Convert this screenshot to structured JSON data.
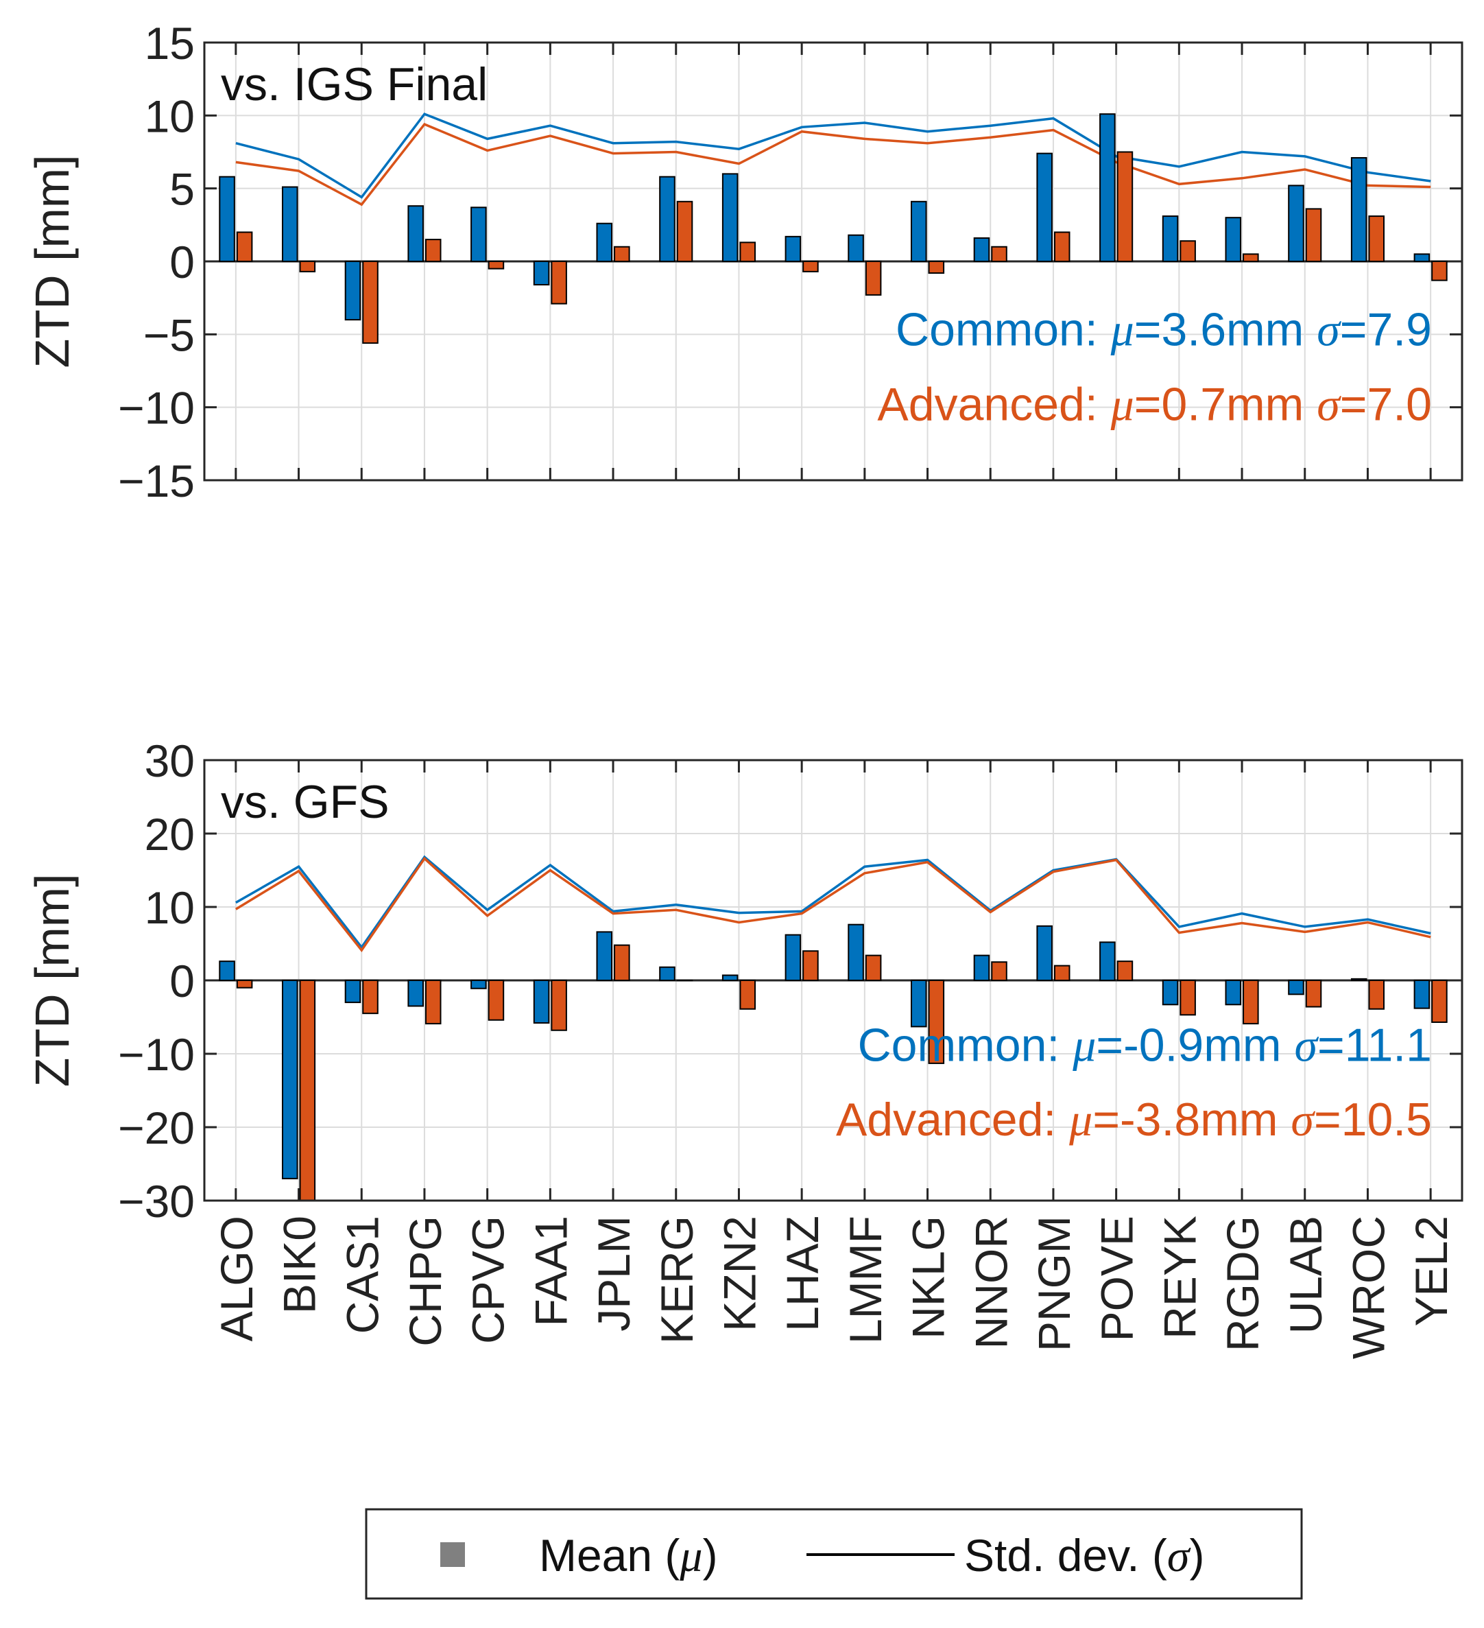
{
  "colors": {
    "common": "#0072BD",
    "advanced": "#D95319",
    "axis": "#262626",
    "grid": "#DCDCDC"
  },
  "chart_data": [
    {
      "type": "bar",
      "title": "vs. IGS Final",
      "ylabel": "ZTD [mm]",
      "ylim": [
        -15,
        15
      ],
      "yticks": [
        -15,
        -10,
        -5,
        0,
        5,
        10,
        15
      ],
      "yticklabels": [
        "−15",
        "−10",
        "−5",
        "0",
        "5",
        "10",
        "15"
      ],
      "grid": true,
      "categories": [
        "ALGO",
        "BIK0",
        "CAS1",
        "CHPG",
        "CPVG",
        "FAA1",
        "JPLM",
        "KERG",
        "KZN2",
        "LHAZ",
        "LMMF",
        "NKLG",
        "NNOR",
        "PNGM",
        "POVE",
        "REYK",
        "RGDG",
        "ULAB",
        "WROC",
        "YEL2"
      ],
      "series": [
        {
          "name": "Common",
          "kind": "mean",
          "values": [
            5.8,
            5.1,
            -4.0,
            3.8,
            3.7,
            -1.6,
            2.6,
            5.8,
            6.0,
            1.7,
            1.8,
            4.1,
            1.6,
            7.4,
            10.1,
            3.1,
            3.0,
            5.2,
            7.1,
            0.5
          ]
        },
        {
          "name": "Advanced",
          "kind": "mean",
          "values": [
            2.0,
            -0.7,
            -5.6,
            1.5,
            -0.5,
            -2.9,
            1.0,
            4.1,
            1.3,
            -0.7,
            -2.3,
            -0.8,
            1.0,
            2.0,
            7.5,
            1.4,
            0.5,
            3.6,
            3.1,
            -1.3
          ]
        },
        {
          "name": "Common",
          "kind": "std",
          "values": [
            8.1,
            7.0,
            4.4,
            10.1,
            8.4,
            9.3,
            8.1,
            8.2,
            7.7,
            9.2,
            9.5,
            8.9,
            9.3,
            9.8,
            7.2,
            6.5,
            7.5,
            7.2,
            6.1,
            5.5
          ]
        },
        {
          "name": "Advanced",
          "kind": "std",
          "values": [
            6.8,
            6.2,
            3.9,
            9.4,
            7.6,
            8.6,
            7.4,
            7.5,
            6.7,
            8.9,
            8.4,
            8.1,
            8.5,
            9.0,
            6.8,
            5.3,
            5.7,
            6.3,
            5.2,
            5.1
          ]
        }
      ],
      "annotations": {
        "common": {
          "label": "Common: ",
          "mu_symbol": "μ",
          "mu_value": "=3.6mm ",
          "sigma_symbol": "σ",
          "sigma_value": "=7.9"
        },
        "advanced": {
          "label": "Advanced: ",
          "mu_symbol": "μ",
          "mu_value": "=0.7mm ",
          "sigma_symbol": "σ",
          "sigma_value": "=7.0"
        }
      }
    },
    {
      "type": "bar",
      "title": "vs. GFS",
      "ylabel": "ZTD [mm]",
      "ylim": [
        -30,
        30
      ],
      "yticks": [
        -30,
        -20,
        -10,
        0,
        10,
        20,
        30
      ],
      "yticklabels": [
        "−30",
        "−20",
        "−10",
        "0",
        "10",
        "20",
        "30"
      ],
      "grid": true,
      "categories": [
        "ALGO",
        "BIK0",
        "CAS1",
        "CHPG",
        "CPVG",
        "FAA1",
        "JPLM",
        "KERG",
        "KZN2",
        "LHAZ",
        "LMMF",
        "NKLG",
        "NNOR",
        "PNGM",
        "POVE",
        "REYK",
        "RGDG",
        "ULAB",
        "WROC",
        "YEL2"
      ],
      "series": [
        {
          "name": "Common",
          "kind": "mean",
          "values": [
            2.6,
            -27.0,
            -3.0,
            -3.5,
            -1.1,
            -5.8,
            6.6,
            1.8,
            0.7,
            6.2,
            7.6,
            -6.3,
            3.4,
            7.4,
            5.2,
            -3.3,
            -3.3,
            -1.9,
            0.2,
            -3.8
          ]
        },
        {
          "name": "Advanced",
          "kind": "mean",
          "values": [
            -1.0,
            -30.0,
            -4.5,
            -5.9,
            -5.4,
            -6.8,
            4.8,
            0.0,
            -3.9,
            4.0,
            3.4,
            -11.3,
            2.5,
            2.0,
            2.6,
            -4.7,
            -5.9,
            -3.6,
            -3.9,
            -5.7
          ]
        },
        {
          "name": "Common",
          "kind": "std",
          "values": [
            10.6,
            15.5,
            4.5,
            16.8,
            9.6,
            15.7,
            9.4,
            10.3,
            9.2,
            9.4,
            15.5,
            16.4,
            9.5,
            15.0,
            16.5,
            7.3,
            9.1,
            7.3,
            8.3,
            6.4
          ]
        },
        {
          "name": "Advanced",
          "kind": "std",
          "values": [
            9.7,
            14.9,
            4.1,
            16.6,
            8.8,
            15.0,
            9.1,
            9.6,
            7.9,
            9.1,
            14.6,
            16.1,
            9.3,
            14.8,
            16.4,
            6.5,
            7.8,
            6.6,
            7.9,
            5.9
          ]
        }
      ],
      "annotations": {
        "common": {
          "label": "Common: ",
          "mu_symbol": "μ",
          "mu_value": "=-0.9mm ",
          "sigma_symbol": "σ",
          "sigma_value": "=11.1"
        },
        "advanced": {
          "label": "Advanced: ",
          "mu_symbol": "μ",
          "mu_value": "=-3.8mm ",
          "sigma_symbol": "σ",
          "sigma_value": "=10.5"
        }
      }
    }
  ],
  "legend": {
    "mean_label": "Mean (",
    "mean_symbol": "μ",
    "mean_close": ")",
    "std_label": "Std. dev. (",
    "std_symbol": "σ",
    "std_close": ")"
  }
}
